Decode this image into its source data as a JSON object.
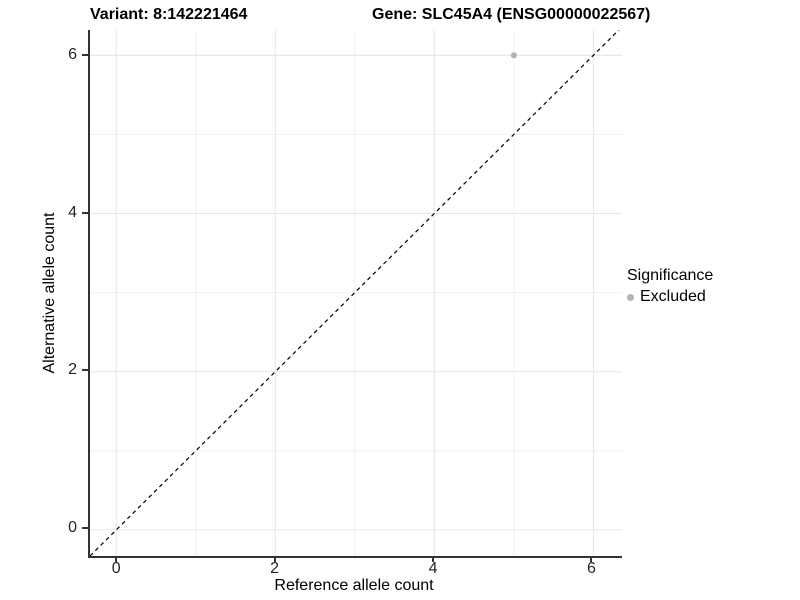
{
  "titles": {
    "variant": "Variant: 8:142221464",
    "gene": "Gene: SLC45A4 (ENSG00000022567)"
  },
  "axes": {
    "x_label": "Reference allele count",
    "y_label": "Alternative allele count"
  },
  "legend": {
    "title": "Significance",
    "items": [
      {
        "label": "Excluded",
        "color": "#b3b3b3"
      }
    ]
  },
  "chart_data": {
    "type": "scatter",
    "title_left": "Variant: 8:142221464",
    "title_right": "Gene: SLC45A4 (ENSG00000022567)",
    "xlabel": "Reference allele count",
    "ylabel": "Alternative allele count",
    "xlim": [
      -0.33,
      6.36
    ],
    "ylim": [
      -0.33,
      6.32
    ],
    "x_ticks": [
      0,
      2,
      4,
      6
    ],
    "y_ticks": [
      0,
      2,
      4,
      6
    ],
    "x_minor_ticks": [
      1,
      3,
      5
    ],
    "y_minor_ticks": [
      1,
      3,
      5
    ],
    "grid": "major+minor",
    "grid_major_color": "#e6e6e6",
    "grid_minor_color": "#f0f0f0",
    "axis_line_color": "#333333",
    "background": "#ffffff",
    "legend_position": "right",
    "legend_title": "Significance",
    "series": [
      {
        "name": "Excluded",
        "color": "#b3b3b3",
        "point_radius": 3,
        "points": [
          {
            "x": 5,
            "y": 6
          }
        ]
      }
    ],
    "reference_line": {
      "slope": 1,
      "intercept": 0,
      "style": "dashed",
      "color": "#000000"
    }
  }
}
